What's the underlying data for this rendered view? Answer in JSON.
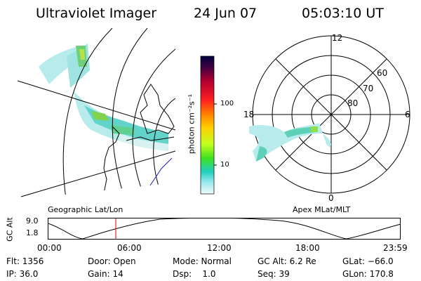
{
  "header": {
    "title": "Ultraviolet Imager",
    "date": "24 Jun 07",
    "time": "05:03:10 UT"
  },
  "geo_panel": {
    "label": "Geographic Lat/Lon"
  },
  "polar_panel": {
    "label": "Apex MLat/MLT",
    "mlt_labels": {
      "top": "12",
      "left": "18",
      "right": "6",
      "bottom": "0"
    },
    "lat_labels": [
      "60",
      "70",
      "80"
    ]
  },
  "colorbar": {
    "unit_label": "photon cm⁻²s⁻¹",
    "ticks": [
      "100",
      "10"
    ]
  },
  "altitude_plot": {
    "axis_label": "GC Alt",
    "y_ticks": [
      "9.0",
      "1.8"
    ],
    "x_ticks": [
      "00:00",
      "06:00",
      "12:00",
      "18:00",
      "23:59"
    ],
    "current_time_marker": "05:03:10"
  },
  "info": {
    "flt": "Flt: 1356",
    "ip": "IP: 36.0",
    "door": "Door: Open",
    "gain": "Gain: 14",
    "mode": "Mode: Normal",
    "dsp": "Dsp:    1.0",
    "gc_alt": "GC Alt: 6.2 Re",
    "seq": "Seq: 39",
    "glat": "GLat: −66.0",
    "glon": "GLon: 170.8"
  },
  "colors": {
    "trace": "#000000",
    "time_marker": "#d00000",
    "coastline_blue": "#2020c0"
  }
}
